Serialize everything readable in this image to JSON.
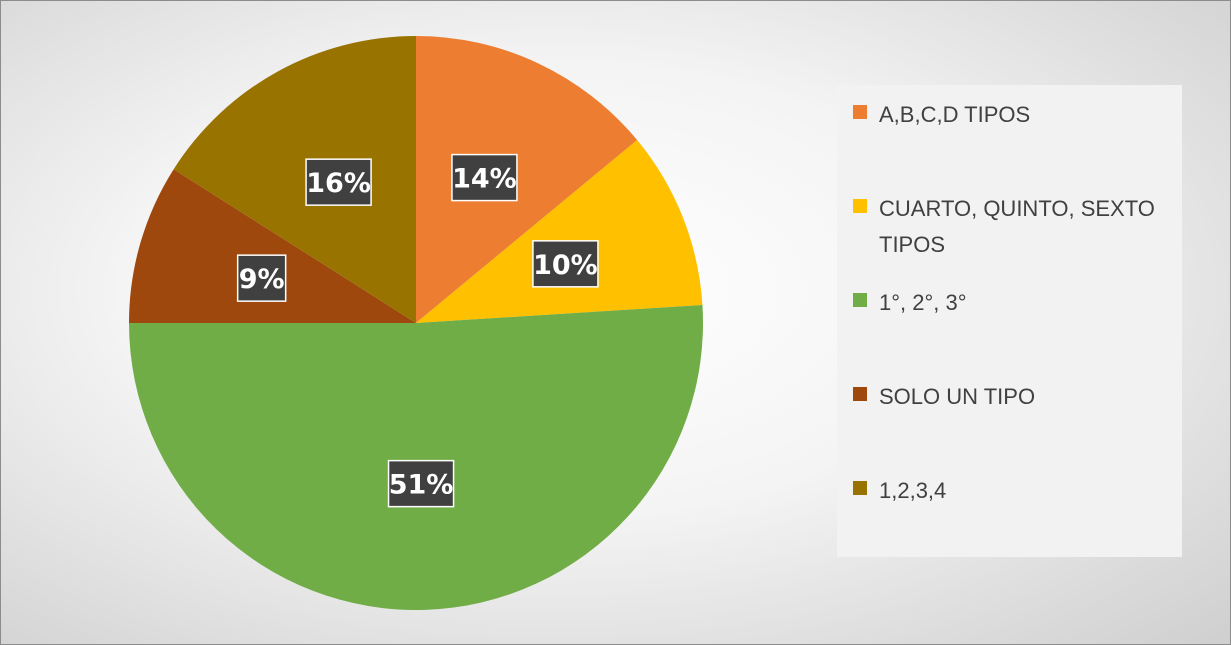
{
  "chart_data": {
    "type": "pie",
    "categories": [
      "A,B,C,D TIPOS",
      "CUARTO, QUINTO, SEXTO TIPOS",
      "1°, 2°, 3°",
      "SOLO UN TIPO",
      "1,2,3,4"
    ],
    "values": [
      14,
      10,
      51,
      9,
      16
    ],
    "labels": [
      "14%",
      "10%",
      "51%",
      "9%",
      "16%"
    ],
    "colors": [
      "#ED7D31",
      "#FFC000",
      "#70AD47",
      "#9E480E",
      "#997300"
    ],
    "legend_position": "right",
    "start_angle": "12 o'clock",
    "direction": "clockwise"
  }
}
